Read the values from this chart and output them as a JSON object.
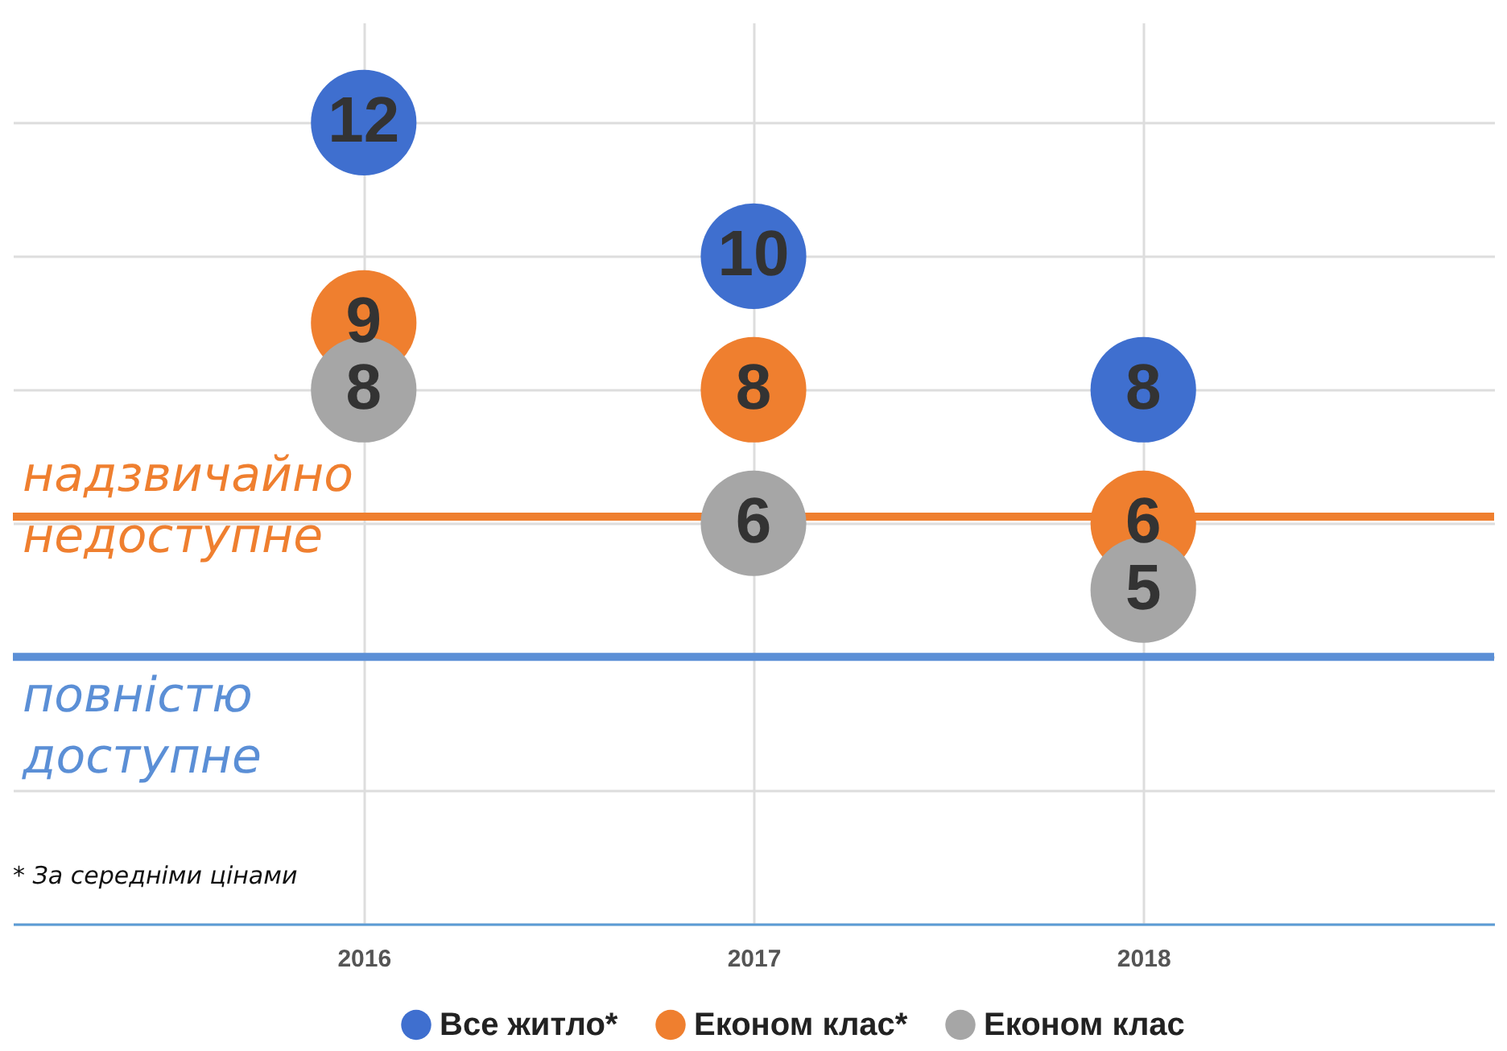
{
  "chart_data": {
    "type": "scatter",
    "categories": [
      "2016",
      "2017",
      "2018"
    ],
    "series": [
      {
        "name": "Все житло*",
        "color": "#3f6fcf",
        "values": [
          12,
          10,
          8
        ]
      },
      {
        "name": "Економ клас*",
        "color": "#ef7f2f",
        "values": [
          9,
          8,
          6
        ]
      },
      {
        "name": "Економ клас",
        "color": "#a6a6a6",
        "values": [
          8,
          6,
          5
        ]
      }
    ],
    "ylim": [
      0,
      13.5
    ],
    "yticks": [
      {
        "value": 0,
        "label": null
      },
      {
        "value": 2,
        "label": null
      },
      {
        "value": 4,
        "label": null
      },
      {
        "value": 6,
        "label": null
      },
      {
        "value": 8,
        "label": null
      },
      {
        "value": 10,
        "label": null
      },
      {
        "value": 12,
        "label": null
      }
    ],
    "tick_labels": "x",
    "grid": true,
    "marker": "circle",
    "data_labels": true,
    "legend": "bottom",
    "ref_lines": [
      {
        "axis": "y",
        "value": 6.1,
        "label": "надзвичайно недоступне",
        "color": "#ef7f2f"
      },
      {
        "axis": "y",
        "value": 4,
        "label": "повністю доступне",
        "color": "#5b8fd6"
      }
    ],
    "annotations": [
      "* За середніми цінами"
    ]
  }
}
